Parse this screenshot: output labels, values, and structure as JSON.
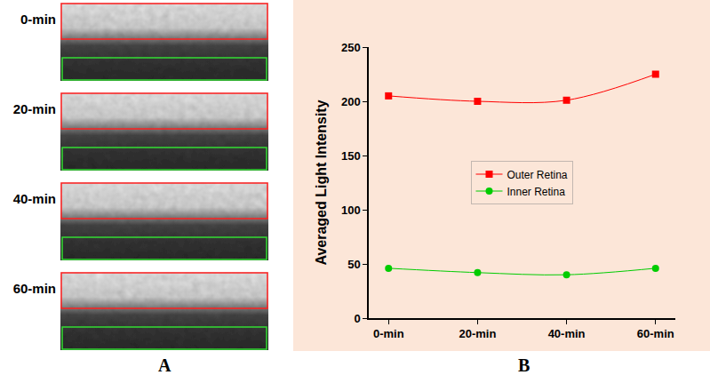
{
  "panel_a": {
    "label": "A",
    "frames": [
      "0-min",
      "20-min",
      "40-min",
      "60-min"
    ]
  },
  "panel_b_label": "B",
  "chart_data": {
    "type": "line",
    "y_label": "Averaged Light Intensity",
    "categories": [
      "0-min",
      "20-min",
      "40-min",
      "60-min"
    ],
    "series": [
      {
        "name": "Outer Retina",
        "color": "#ff0000",
        "marker": "square",
        "values": [
          205,
          200,
          201,
          225
        ]
      },
      {
        "name": "Inner Retina",
        "color": "#00cc00",
        "marker": "circle",
        "values": [
          46,
          42,
          40,
          46
        ]
      }
    ],
    "ylim": [
      0,
      250
    ],
    "yticks": [
      0,
      50,
      100,
      150,
      200,
      250
    ],
    "grid": false,
    "legend": "center"
  }
}
